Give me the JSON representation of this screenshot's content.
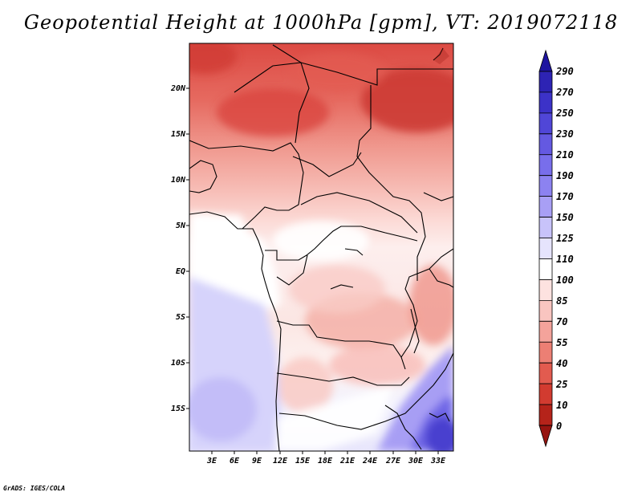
{
  "title": "Geopotential Height at 1000hPa [gpm], VT: 2019072118",
  "credit": "GrADS: IGES/COLA",
  "axes": {
    "lat_labels": [
      "20N",
      "15N",
      "10N",
      "5N",
      "EQ",
      "5S",
      "10S",
      "15S"
    ],
    "lon_labels": [
      "3E",
      "6E",
      "9E",
      "12E",
      "15E",
      "18E",
      "21E",
      "24E",
      "27E",
      "30E",
      "33E"
    ]
  },
  "colorbar": {
    "labels": [
      "290",
      "270",
      "250",
      "230",
      "210",
      "190",
      "170",
      "150",
      "125",
      "110",
      "100",
      "85",
      "70",
      "55",
      "40",
      "25",
      "10",
      "0"
    ],
    "colors": [
      "#1e14a0",
      "#2d23b4",
      "#3c32c8",
      "#5046d7",
      "#6459e1",
      "#786eeb",
      "#8c82f0",
      "#a89ff5",
      "#c8c3fa",
      "#e6e4fd",
      "#ffffff",
      "#fde2e0",
      "#f9c5c0",
      "#f4a39b",
      "#ec7f74",
      "#e25b4f",
      "#d23b30",
      "#b5231a",
      "#961410"
    ]
  }
}
